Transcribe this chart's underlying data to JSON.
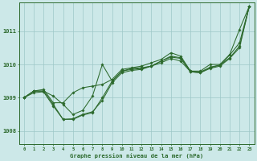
{
  "x": [
    0,
    1,
    2,
    3,
    4,
    5,
    6,
    7,
    8,
    9,
    10,
    11,
    12,
    13,
    14,
    15,
    16,
    17,
    18,
    19,
    20,
    21,
    22,
    23
  ],
  "line_high": [
    1009.0,
    1009.2,
    1009.25,
    1008.85,
    1008.85,
    1009.15,
    1009.3,
    1009.35,
    1009.4,
    1009.55,
    1009.85,
    1009.9,
    1009.95,
    1010.05,
    1010.15,
    1010.35,
    1010.25,
    1009.8,
    1009.8,
    1010.0,
    1010.0,
    1010.3,
    1011.05,
    1011.75
  ],
  "line_low": [
    1009.0,
    1009.2,
    1009.2,
    1008.8,
    1008.35,
    1008.35,
    1008.48,
    1008.55,
    1009.0,
    1009.5,
    1009.8,
    1009.85,
    1009.88,
    1009.95,
    1010.1,
    1010.25,
    1010.2,
    1009.8,
    1009.78,
    1009.9,
    1009.98,
    1010.2,
    1010.55,
    1011.75
  ],
  "line_mid1": [
    1009.0,
    1009.15,
    1009.18,
    1008.75,
    1008.35,
    1008.37,
    1008.5,
    1008.58,
    1008.92,
    1009.45,
    1009.75,
    1009.82,
    1009.85,
    1009.95,
    1010.05,
    1010.18,
    1010.1,
    1009.78,
    1009.75,
    1009.88,
    1009.95,
    1010.18,
    1010.5,
    1011.75
  ],
  "line_spike": [
    1009.0,
    1009.2,
    1009.2,
    1009.05,
    1008.8,
    1008.5,
    1008.62,
    1009.05,
    1010.0,
    1009.5,
    1009.8,
    1009.88,
    1009.9,
    1009.95,
    1010.1,
    1010.22,
    1010.18,
    1009.78,
    1009.75,
    1009.92,
    1009.98,
    1010.28,
    1010.65,
    1011.75
  ],
  "ylim": [
    1007.6,
    1011.85
  ],
  "xlim": [
    -0.5,
    23.5
  ],
  "yticks": [
    1008,
    1009,
    1010,
    1011
  ],
  "xticks": [
    0,
    1,
    2,
    3,
    4,
    5,
    6,
    7,
    8,
    9,
    10,
    11,
    12,
    13,
    14,
    15,
    16,
    17,
    18,
    19,
    20,
    21,
    22,
    23
  ],
  "line_color": "#2d6a2d",
  "bg_color": "#cce8e8",
  "grid_color": "#9dc8c8",
  "xlabel": "Graphe pression niveau de la mer (hPa)",
  "marker": "D",
  "marker_size": 1.8,
  "linewidth": 0.75
}
